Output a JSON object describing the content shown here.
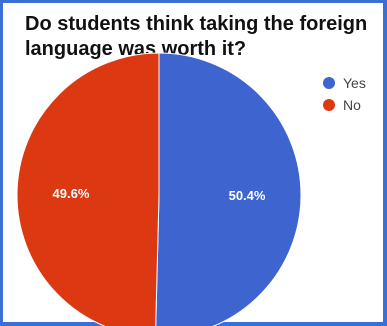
{
  "chart_data": {
    "type": "pie",
    "title": "Do students think taking the foreign language was worth it?",
    "legend_position": "right",
    "slices": [
      {
        "label": "Yes",
        "value": 50.4,
        "display": "50.4%",
        "color": "#3e65cf"
      },
      {
        "label": "No",
        "value": 49.6,
        "display": "49.6%",
        "color": "#dc3912"
      }
    ]
  },
  "colors": {
    "frame_border": "#3a6fd8",
    "background": "#ffffff"
  }
}
